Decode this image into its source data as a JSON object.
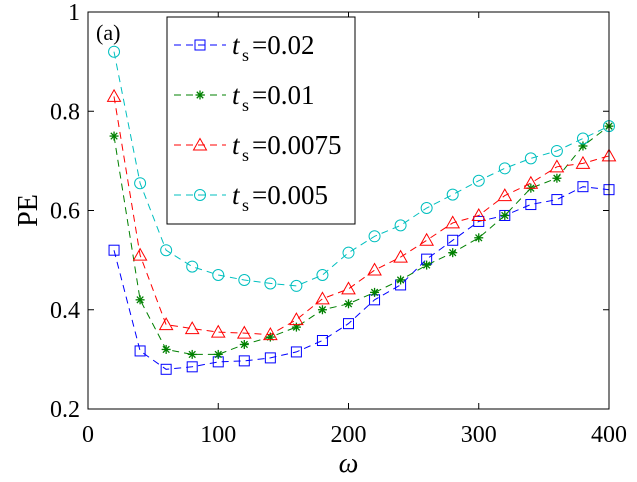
{
  "chart_data": {
    "type": "line",
    "panel_label": "(a)",
    "xlabel": "ω",
    "ylabel": "PE",
    "xlim": [
      0,
      400
    ],
    "ylim": [
      0.2,
      1.0
    ],
    "xticks": [
      0,
      100,
      200,
      300,
      400
    ],
    "yticks": [
      0.2,
      0.4,
      0.6,
      0.8,
      1.0
    ],
    "ytick_labels": [
      "0.2",
      "0.4",
      "0.6",
      "0.8",
      "1"
    ],
    "grid": false,
    "legend_position": "top-left",
    "legend_prefix": "t",
    "legend_subscript": "s",
    "x": [
      20,
      40,
      60,
      80,
      100,
      120,
      140,
      160,
      180,
      200,
      220,
      240,
      260,
      280,
      300,
      320,
      340,
      360,
      380,
      400
    ],
    "series": [
      {
        "name": "t_s=0.02",
        "value_label": "=0.02",
        "color": "#0000ff",
        "marker": "square",
        "values": [
          0.52,
          0.317,
          0.28,
          0.285,
          0.295,
          0.297,
          0.303,
          0.315,
          0.338,
          0.372,
          0.42,
          0.45,
          0.502,
          0.54,
          0.578,
          0.59,
          0.612,
          0.622,
          0.648,
          0.642
        ]
      },
      {
        "name": "t_s=0.01",
        "value_label": "=0.01",
        "color": "#008000",
        "marker": "star",
        "values": [
          0.75,
          0.42,
          0.32,
          0.31,
          0.31,
          0.33,
          0.345,
          0.365,
          0.4,
          0.412,
          0.435,
          0.46,
          0.49,
          0.515,
          0.545,
          0.59,
          0.645,
          0.665,
          0.73,
          0.77
        ]
      },
      {
        "name": "t_s=0.0075",
        "value_label": "=0.0075",
        "color": "#ff0000",
        "marker": "triangle",
        "values": [
          0.83,
          0.51,
          0.37,
          0.362,
          0.355,
          0.353,
          0.35,
          0.38,
          0.422,
          0.442,
          0.48,
          0.506,
          0.54,
          0.575,
          0.59,
          0.63,
          0.655,
          0.688,
          0.695,
          0.71
        ]
      },
      {
        "name": "t_s=0.005",
        "value_label": "=0.005",
        "color": "#00bfbf",
        "marker": "circle",
        "values": [
          0.92,
          0.655,
          0.52,
          0.487,
          0.47,
          0.46,
          0.453,
          0.448,
          0.47,
          0.515,
          0.548,
          0.57,
          0.605,
          0.632,
          0.66,
          0.685,
          0.705,
          0.72,
          0.745,
          0.77
        ]
      }
    ]
  }
}
